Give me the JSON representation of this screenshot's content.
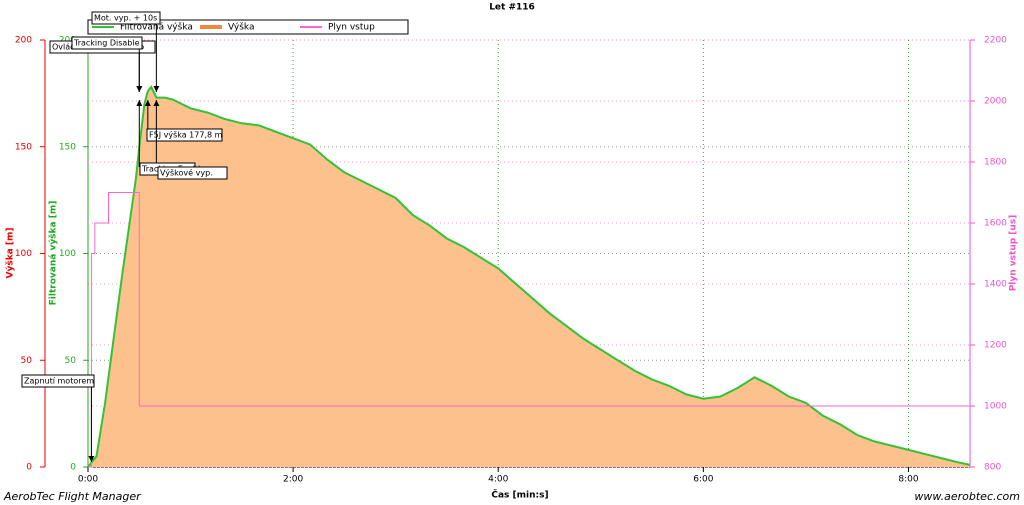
{
  "chart_data": {
    "type": "line",
    "title": "Let #116",
    "axis_labels": {
      "x": "Čas [min:s]",
      "y": "Výška [m]",
      "y_filtered": "Filtrovaná výška [m]",
      "y2": "Plyn vstup [us]"
    },
    "footer": {
      "left": "AerobTec Flight Manager",
      "right": "www.aerobtec.com"
    },
    "xlim": [
      0,
      516
    ],
    "xticks": [
      {
        "value": 0,
        "label": "0:00"
      },
      {
        "value": 120,
        "label": "2:00"
      },
      {
        "value": 240,
        "label": "4:00"
      },
      {
        "value": 360,
        "label": "6:00"
      },
      {
        "value": 480,
        "label": "8:00"
      }
    ],
    "ylim": [
      0,
      200
    ],
    "yticks": [
      0,
      50,
      100,
      150,
      200
    ],
    "y2lim": [
      800,
      2200
    ],
    "y2ticks": [
      800,
      1000,
      1200,
      1400,
      1600,
      1800,
      2000,
      2200
    ],
    "grid": true,
    "x": [
      0,
      5,
      10,
      15,
      20,
      25,
      28,
      30,
      33,
      35,
      37,
      40,
      45,
      50,
      55,
      60,
      70,
      80,
      90,
      100,
      110,
      120,
      130,
      140,
      150,
      160,
      170,
      180,
      190,
      200,
      210,
      220,
      230,
      240,
      250,
      260,
      270,
      280,
      290,
      300,
      310,
      320,
      330,
      340,
      350,
      360,
      370,
      380,
      390,
      400,
      410,
      420,
      430,
      440,
      450,
      460,
      470,
      480,
      490,
      500,
      510,
      516
    ],
    "series": [
      {
        "name": "Výška",
        "color": "#f4863c",
        "fill": "#fdc18d",
        "values": [
          0,
          5,
          30,
          60,
          90,
          118,
          135,
          150,
          170,
          176,
          178,
          173,
          173,
          172,
          170,
          168,
          166,
          163,
          161,
          160,
          157,
          154,
          151,
          144,
          138,
          134,
          130,
          126,
          118,
          113,
          107,
          103,
          98,
          93,
          86,
          79,
          72,
          66,
          60,
          55,
          50,
          45,
          41,
          38,
          34,
          32,
          33,
          37,
          42,
          38,
          33,
          30,
          24,
          20,
          15,
          12,
          10,
          8,
          6,
          4,
          2,
          1
        ]
      },
      {
        "name": "Filtrovaná výška",
        "color": "#33c233",
        "values": [
          0,
          5,
          30,
          60,
          90,
          118,
          135,
          150,
          170,
          176,
          178,
          173,
          173,
          172,
          170,
          168,
          166,
          163,
          161,
          160,
          157,
          154,
          151,
          144,
          138,
          134,
          130,
          126,
          118,
          113,
          107,
          103,
          98,
          93,
          86,
          79,
          72,
          66,
          60,
          55,
          50,
          45,
          41,
          38,
          34,
          32,
          33,
          37,
          42,
          38,
          33,
          30,
          24,
          20,
          15,
          12,
          10,
          8,
          6,
          4,
          2,
          1
        ]
      },
      {
        "name": "Plyn vstup",
        "color": "#ff66cc",
        "axis": "y2",
        "x": [
          0,
          2,
          2,
          4,
          4,
          12,
          12,
          30,
          30,
          516
        ],
        "values": [
          800,
          800,
          1500,
          1500,
          1600,
          1600,
          1700,
          1700,
          1000,
          1000
        ]
      }
    ],
    "events": [
      {
        "label": "Zapnutí motorem",
        "time": 2
      },
      {
        "label": "Ovládání deaktivováno",
        "time": 30
      },
      {
        "label": "Tracking Disable",
        "time": 30
      },
      {
        "label": "Mot. vyp. + 10s",
        "time": 40
      },
      {
        "label": "F5J výška 177,8 m",
        "time": 35
      },
      {
        "label": "Výškové vyp.",
        "time": 30
      },
      {
        "label": "Tracking Enable",
        "time": 40
      }
    ]
  }
}
